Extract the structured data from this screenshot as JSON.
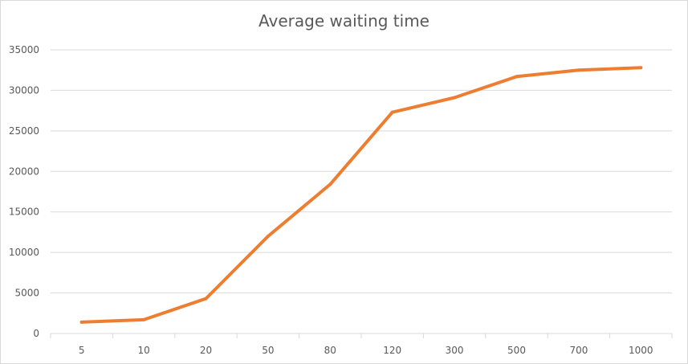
{
  "chart_data": {
    "type": "line",
    "title": "Average waiting time",
    "xlabel": "",
    "ylabel": "",
    "categories": [
      "5",
      "10",
      "20",
      "50",
      "80",
      "120",
      "300",
      "500",
      "700",
      "1000"
    ],
    "series": [
      {
        "values": [
          1400,
          1700,
          4300,
          12000,
          18400,
          27300,
          29100,
          31700,
          32500,
          32800
        ]
      }
    ],
    "ylim": [
      0,
      35000
    ],
    "yticks": [
      0,
      5000,
      10000,
      15000,
      20000,
      25000,
      30000,
      35000
    ],
    "grid": true,
    "legend": "none",
    "colors": {
      "line": "#ED7D31",
      "grid": "#D9D9D9",
      "text": "#595959"
    }
  }
}
